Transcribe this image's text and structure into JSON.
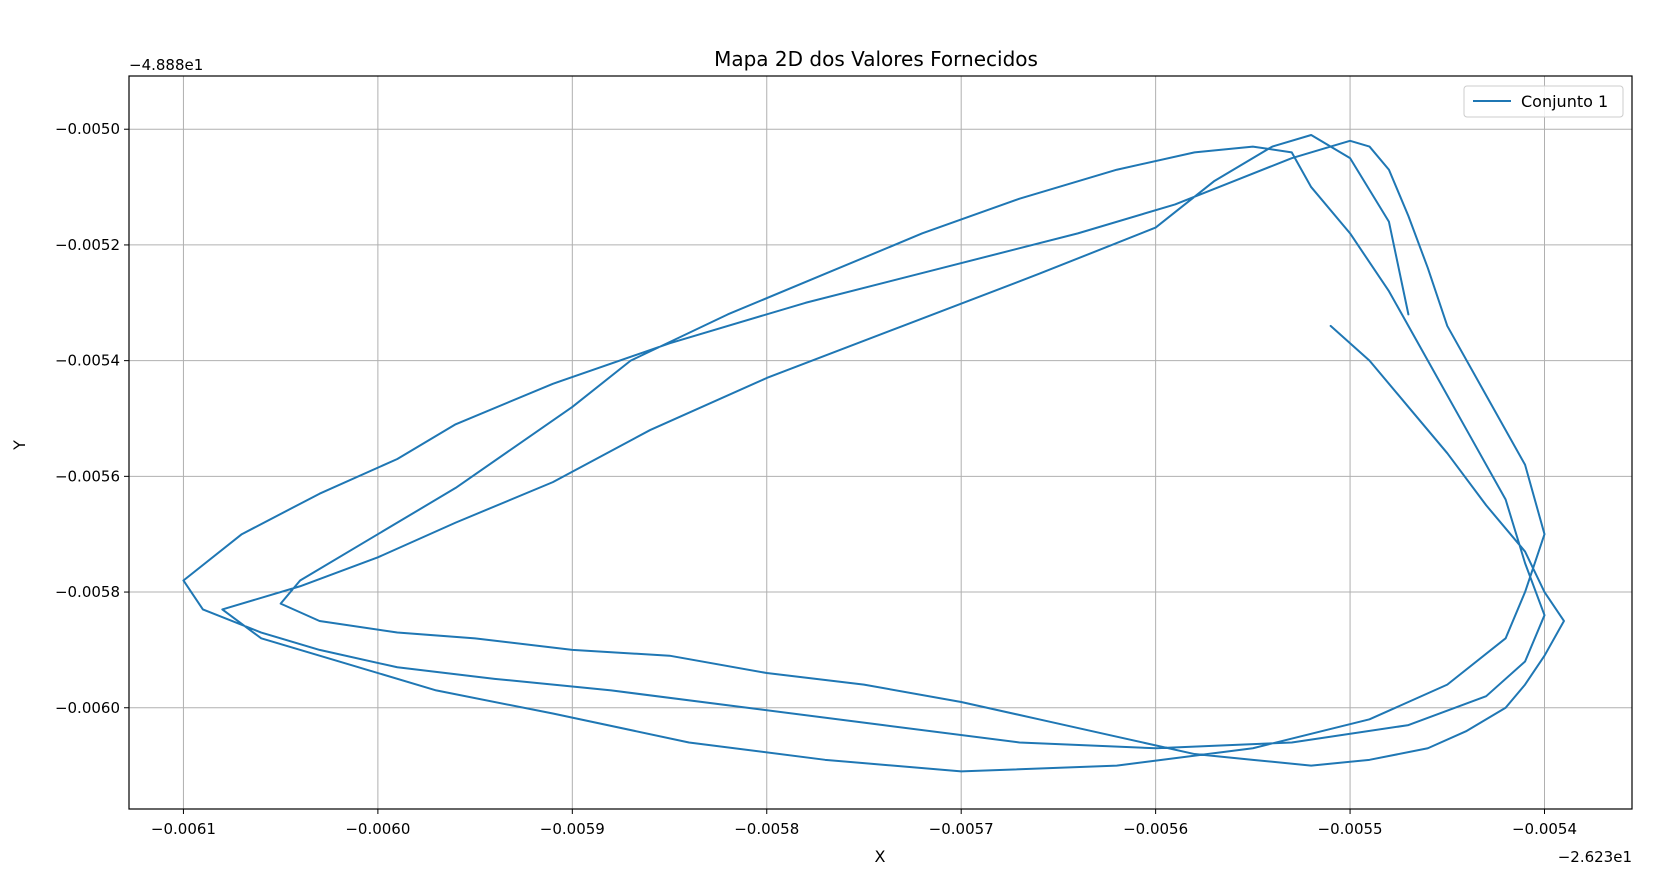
{
  "chart_data": {
    "type": "line",
    "title": "Mapa 2D dos Valores Fornecidos",
    "xlabel": "X",
    "ylabel": "Y",
    "x_offset_label": "−2.623e1",
    "y_offset_label": "−4.888e1",
    "xlim": [
      -0.006128,
      -0.005355
    ],
    "ylim": [
      -0.006175,
      -0.004908
    ],
    "grid": true,
    "legend_position": "top-right",
    "x_ticks": [
      -0.0061,
      -0.006,
      -0.0059,
      -0.0058,
      -0.0057,
      -0.0056,
      -0.0055,
      -0.0054
    ],
    "x_tick_labels": [
      "−0.0061",
      "−0.0060",
      "−0.0059",
      "−0.0058",
      "−0.0057",
      "−0.0056",
      "−0.0055",
      "−0.0054"
    ],
    "y_ticks": [
      -0.005,
      -0.0052,
      -0.0054,
      -0.0056,
      -0.0058,
      -0.006
    ],
    "y_tick_labels": [
      "−0.0050",
      "−0.0052",
      "−0.0054",
      "−0.0056",
      "−0.0058",
      "−0.0060"
    ],
    "series": [
      {
        "name": "Conjunto 1",
        "color": "#1f77b4",
        "x": [
          -0.00551,
          -0.00549,
          -0.00547,
          -0.00545,
          -0.00543,
          -0.00541,
          -0.0054,
          -0.00539,
          -0.0054,
          -0.00541,
          -0.00542,
          -0.00544,
          -0.00546,
          -0.00549,
          -0.00552,
          -0.00555,
          -0.00558,
          -0.00562,
          -0.00566,
          -0.0057,
          -0.00575,
          -0.0058,
          -0.00585,
          -0.0059,
          -0.00595,
          -0.00599,
          -0.00603,
          -0.00605,
          -0.00604,
          -0.006,
          -0.00596,
          -0.00593,
          -0.0059,
          -0.00587,
          -0.00582,
          -0.00577,
          -0.00572,
          -0.00567,
          -0.00562,
          -0.00558,
          -0.00555,
          -0.00553,
          -0.00552,
          -0.0055,
          -0.00548,
          -0.00546,
          -0.00544,
          -0.00542,
          -0.00541,
          -0.0054,
          -0.00541,
          -0.00543,
          -0.00547,
          -0.00553,
          -0.0056,
          -0.00567,
          -0.00574,
          -0.00581,
          -0.00588,
          -0.00594,
          -0.00599,
          -0.00603,
          -0.00606,
          -0.00609,
          -0.0061,
          -0.00607,
          -0.00603,
          -0.00599,
          -0.00596,
          -0.00591,
          -0.00585,
          -0.00578,
          -0.00571,
          -0.00564,
          -0.00559,
          -0.00556,
          -0.00553,
          -0.00551,
          -0.0055,
          -0.00549,
          -0.00548,
          -0.00547,
          -0.00546,
          -0.00545,
          -0.00543,
          -0.00541,
          -0.0054,
          -0.00541,
          -0.00542,
          -0.00545,
          -0.00549,
          -0.00555,
          -0.00562,
          -0.0057,
          -0.00577,
          -0.00584,
          -0.00591,
          -0.00597,
          -0.00602,
          -0.00606,
          -0.00608,
          -0.00604,
          -0.006,
          -0.00596,
          -0.00591,
          -0.00586,
          -0.0058,
          -0.00573,
          -0.00566,
          -0.0056,
          -0.00557,
          -0.00554,
          -0.00552,
          -0.0055,
          -0.00548,
          -0.00547
        ],
        "y": [
          -0.00534,
          -0.0054,
          -0.00548,
          -0.00556,
          -0.00565,
          -0.00573,
          -0.0058,
          -0.00585,
          -0.00591,
          -0.00596,
          -0.006,
          -0.00604,
          -0.00607,
          -0.00609,
          -0.0061,
          -0.00609,
          -0.00608,
          -0.00605,
          -0.00602,
          -0.00599,
          -0.00596,
          -0.00594,
          -0.00591,
          -0.0059,
          -0.00588,
          -0.00587,
          -0.00585,
          -0.00582,
          -0.00578,
          -0.0057,
          -0.00562,
          -0.00555,
          -0.00548,
          -0.0054,
          -0.00532,
          -0.00525,
          -0.00518,
          -0.00512,
          -0.00507,
          -0.00504,
          -0.00503,
          -0.00504,
          -0.0051,
          -0.00518,
          -0.00528,
          -0.0054,
          -0.00552,
          -0.00564,
          -0.00575,
          -0.00584,
          -0.00592,
          -0.00598,
          -0.00603,
          -0.00606,
          -0.00607,
          -0.00606,
          -0.00603,
          -0.006,
          -0.00597,
          -0.00595,
          -0.00593,
          -0.0059,
          -0.00587,
          -0.00583,
          -0.00578,
          -0.0057,
          -0.00563,
          -0.00557,
          -0.00551,
          -0.00544,
          -0.00537,
          -0.0053,
          -0.00524,
          -0.00518,
          -0.00513,
          -0.00509,
          -0.00505,
          -0.00503,
          -0.00502,
          -0.00503,
          -0.00507,
          -0.00515,
          -0.00524,
          -0.00534,
          -0.00546,
          -0.00558,
          -0.0057,
          -0.0058,
          -0.00588,
          -0.00596,
          -0.00602,
          -0.00607,
          -0.0061,
          -0.00611,
          -0.00609,
          -0.00606,
          -0.00601,
          -0.00597,
          -0.00592,
          -0.00588,
          -0.00583,
          -0.00579,
          -0.00574,
          -0.00568,
          -0.00561,
          -0.00552,
          -0.00543,
          -0.00534,
          -0.00525,
          -0.00517,
          -0.00509,
          -0.00503,
          -0.00501,
          -0.00505,
          -0.00516,
          -0.00532
        ]
      }
    ]
  }
}
